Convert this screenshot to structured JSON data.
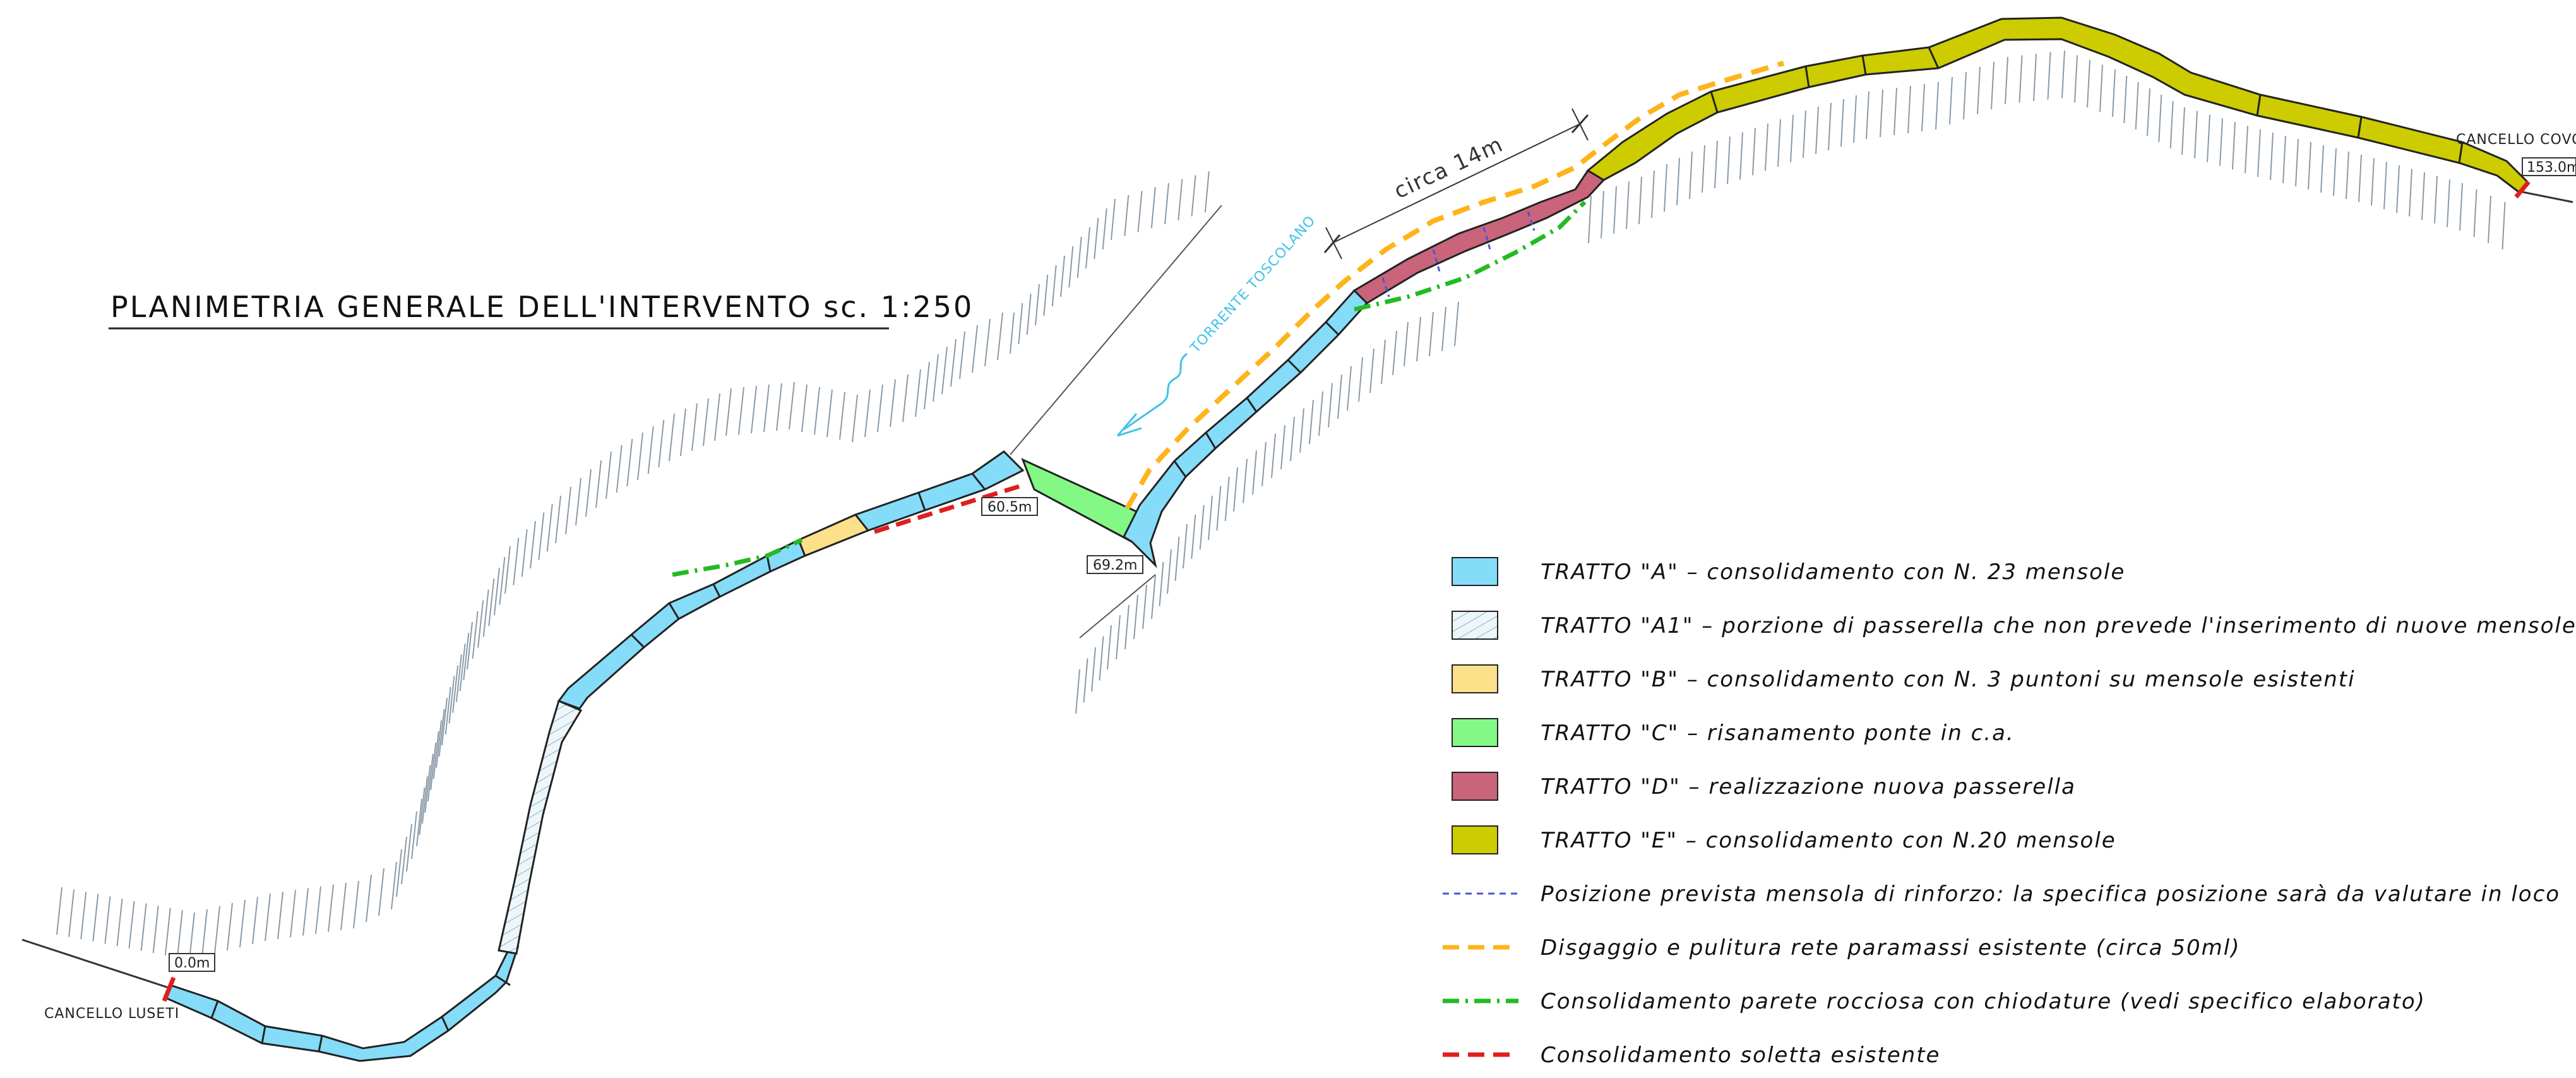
{
  "drawing": {
    "title": "PLANIMETRIA GENERALE DELL'INTERVENTO sc. 1:250",
    "river_label": "TORRENTE TOSCOLANO",
    "dimension_label": "circa 14m",
    "gate_start": "CANCELLO LUSETI",
    "gate_end": "CANCELLO COVOL",
    "distances": {
      "start": "0.0m",
      "bridge_west": "60.5m",
      "bridge_east": "69.2m",
      "end": "153.0m"
    }
  },
  "colors": {
    "tratto_a": "#84dcf8",
    "tratto_a1": "#e6f3f8",
    "tratto_b": "#fde08a",
    "tratto_c": "#84f884",
    "tratto_d": "#c9647a",
    "tratto_e": "#cccc00",
    "mensola": "#4a55d6",
    "disgaggio": "#ffb31a",
    "chiodature": "#22bb22",
    "soletta": "#e01e1e",
    "river": "#3fc3e6"
  },
  "legend": [
    {
      "key": "tratto_a",
      "kind": "box",
      "text": "TRATTO \"A\" – consolidamento con N. 23 mensole"
    },
    {
      "key": "tratto_a1",
      "kind": "box-hatch",
      "text": "TRATTO \"A1\" – porzione di passerella che non prevede l'inserimento di nuove mensole"
    },
    {
      "key": "tratto_b",
      "kind": "box",
      "text": "TRATTO \"B\" – consolidamento con N. 3 puntoni su mensole esistenti"
    },
    {
      "key": "tratto_c",
      "kind": "box",
      "text": "TRATTO \"C\" – risanamento ponte in c.a."
    },
    {
      "key": "tratto_d",
      "kind": "box",
      "text": "TRATTO \"D\" – realizzazione nuova passerella"
    },
    {
      "key": "tratto_e",
      "kind": "box",
      "text": "TRATTO \"E\" – consolidamento con N.20 mensole"
    },
    {
      "key": "mensola",
      "kind": "line-dash",
      "text": "Posizione prevista mensola di rinforzo: la specifica posizione sarà da valutare in loco"
    },
    {
      "key": "disgaggio",
      "kind": "line-dash",
      "text": "Disgaggio e pulitura rete paramassi esistente (circa 50ml)"
    },
    {
      "key": "chiodature",
      "kind": "line-dashdot",
      "text": "Consolidamento parete rocciosa con chiodature (vedi specifico elaborato)"
    },
    {
      "key": "soletta",
      "kind": "line-dash",
      "text": "Consolidamento soletta esistente"
    }
  ]
}
